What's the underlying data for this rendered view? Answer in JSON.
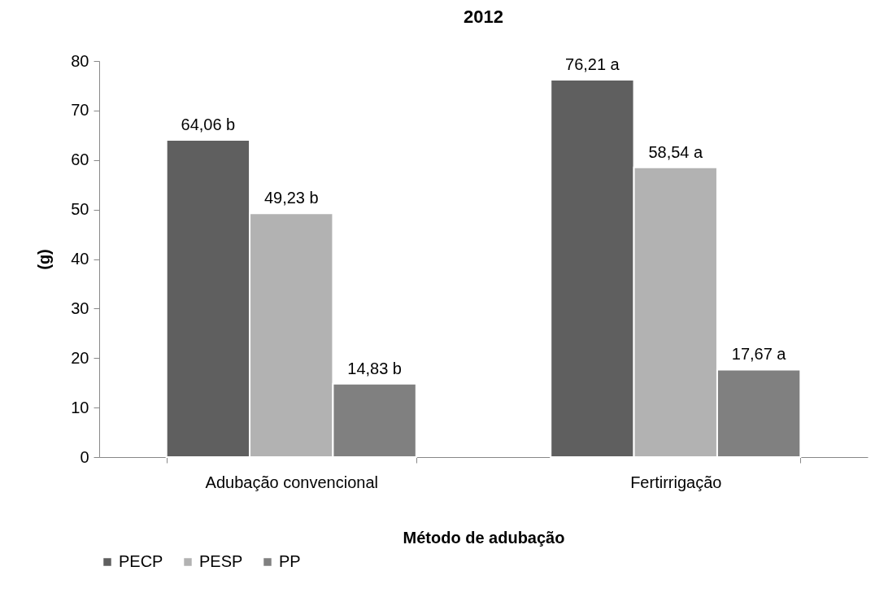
{
  "chart_data": {
    "type": "bar",
    "title": "2012",
    "xlabel": "Método de adubação",
    "ylabel": "(g)",
    "categories": [
      "Adubação convencional",
      "Fertirrigação"
    ],
    "series": [
      {
        "name": "PECP",
        "color": "#5f5f5f",
        "values": [
          64.06,
          76.21
        ],
        "value_labels": [
          "64,06 b",
          "76,21 a"
        ]
      },
      {
        "name": "PESP",
        "color": "#b2b2b2",
        "values": [
          49.23,
          58.54
        ],
        "value_labels": [
          "49,23 b",
          "58,54 a"
        ]
      },
      {
        "name": "PP",
        "color": "#808080",
        "values": [
          14.83,
          17.67
        ],
        "value_labels": [
          "14,83 b",
          "17,67 a"
        ]
      }
    ],
    "ylim": [
      0,
      80
    ],
    "yticks": [
      0,
      10,
      20,
      30,
      40,
      50,
      60,
      70,
      80
    ],
    "grid": false,
    "legend": "bottom"
  }
}
